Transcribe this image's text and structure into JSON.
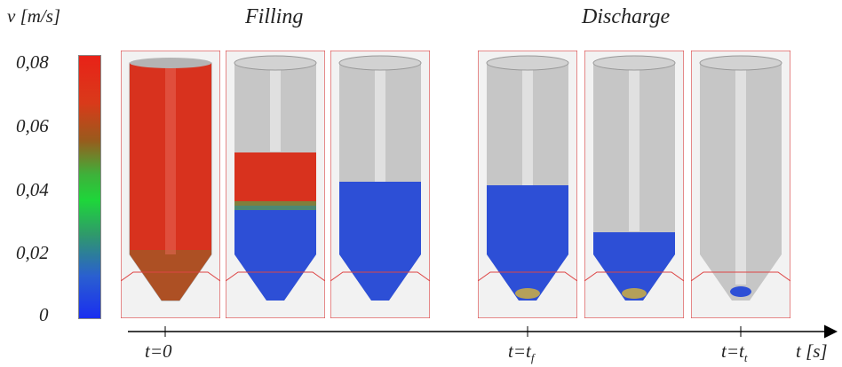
{
  "legend": {
    "title": "v [m/s]",
    "ticks": [
      "0,08",
      "0,06",
      "0,04",
      "0,02",
      "0"
    ],
    "gradient_colors": [
      "#e82218",
      "#9a5a1c",
      "#1ed63a",
      "#2a5fd0",
      "#1a2ef0"
    ]
  },
  "phases": {
    "filling": "Filling",
    "discharge": "Discharge"
  },
  "timeline": {
    "labels": [
      "t=0",
      "t=t",
      "t=t"
    ],
    "subscripts": [
      "",
      "f",
      "t"
    ],
    "axis_label": "t [s]"
  },
  "silos": [
    {
      "fill_level": 1.0,
      "top_color": "#d8321e",
      "state": "filling-start"
    },
    {
      "fill_level": 0.62,
      "top_color": "#d8321e",
      "state": "filling-mid"
    },
    {
      "fill_level": 0.53,
      "top_color": "#2d4fd6",
      "state": "filled"
    },
    {
      "fill_level": 0.48,
      "top_color": "#2d4fd6",
      "state": "discharge-start"
    },
    {
      "fill_level": 0.3,
      "top_color": "#2d4fd6",
      "state": "discharge-mid"
    },
    {
      "fill_level": 0.02,
      "top_color": "#2d4fd6",
      "state": "discharge-end"
    }
  ]
}
